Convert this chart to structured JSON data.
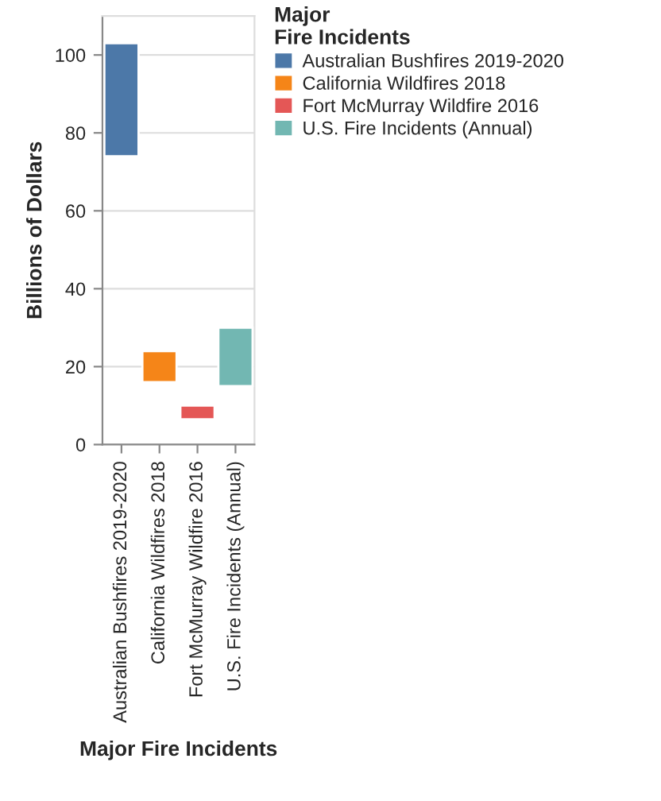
{
  "chart_data": {
    "type": "bar",
    "xlabel": "Major Fire Incidents",
    "ylabel": "Billions of Dollars",
    "legend_title": "Major\nFire Incidents",
    "categories": [
      "Australian Bushfires 2019-2020",
      "California Wildfires 2018",
      "Fort McMurray Wildfire 2016",
      "U.S. Fire Incidents (Annual)"
    ],
    "series": [
      {
        "name": "Australian Bushfires 2019-2020",
        "color": "#4c78a8",
        "base": [
          74,
          null,
          null,
          null
        ],
        "values": [
          29,
          null,
          null,
          null
        ]
      },
      {
        "name": "California Wildfires 2018",
        "color": "#f58518",
        "base": [
          null,
          16,
          null,
          null
        ],
        "values": [
          null,
          8,
          null,
          null
        ]
      },
      {
        "name": "Fort McMurray Wildfire 2016",
        "color": "#e45756",
        "base": [
          null,
          null,
          6.5,
          null
        ],
        "values": [
          null,
          null,
          3.5,
          null
        ]
      },
      {
        "name": "U.S. Fire Incidents (Annual)",
        "color": "#72b7b2",
        "base": [
          null,
          null,
          null,
          15
        ],
        "values": [
          null,
          null,
          null,
          15
        ]
      }
    ],
    "ylim": [
      0,
      110
    ],
    "yticks": [
      0,
      20,
      40,
      60,
      80,
      100
    ],
    "grid": "y",
    "legend": "top right"
  }
}
